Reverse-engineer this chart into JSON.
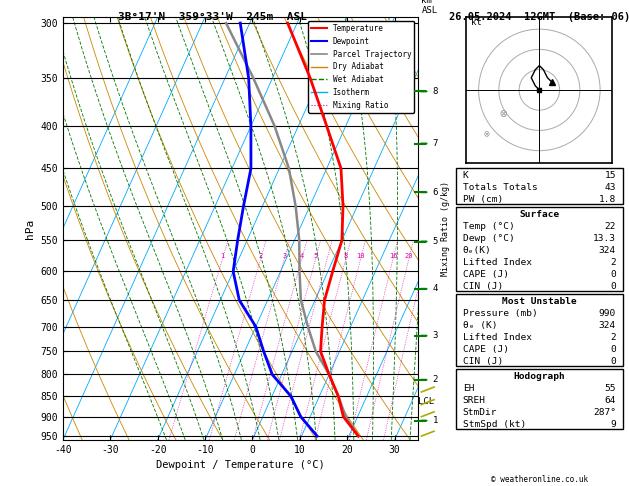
{
  "title_left": "3B°17'N  359°33'W  245m  ASL",
  "title_right": "26.05.2024  12GMT  (Base: 06)",
  "xlabel": "Dewpoint / Temperature (°C)",
  "ylabel_left": "hPa",
  "pressure_levels": [
    300,
    350,
    400,
    450,
    500,
    550,
    600,
    650,
    700,
    750,
    800,
    850,
    900,
    950
  ],
  "pmin": 295,
  "pmax": 960,
  "temp_min": -40,
  "temp_max": 35,
  "temp_profile_pressure": [
    950,
    900,
    850,
    800,
    750,
    700,
    650,
    600,
    550,
    500,
    450,
    400,
    350,
    300
  ],
  "temp_profile_temp": [
    22,
    17,
    14,
    10,
    6,
    4,
    2,
    1,
    0,
    -3,
    -7,
    -14,
    -22,
    -32
  ],
  "temp_color": "#ff0000",
  "temp_lw": 2.0,
  "dewp_profile_pressure": [
    950,
    900,
    850,
    800,
    750,
    700,
    650,
    600,
    550,
    500,
    450,
    400,
    350,
    300
  ],
  "dewp_profile_temp": [
    13.3,
    8,
    4,
    -2,
    -6,
    -10,
    -16,
    -20,
    -22,
    -24,
    -26,
    -30,
    -35,
    -42
  ],
  "dewp_color": "#0000ff",
  "dewp_lw": 2.0,
  "parcel_pressure": [
    950,
    900,
    850,
    800,
    750,
    700,
    650,
    600,
    550,
    500,
    450,
    400,
    350,
    300
  ],
  "parcel_temp": [
    22,
    17.5,
    14,
    10,
    5,
    1,
    -3,
    -6,
    -9,
    -13,
    -18,
    -25,
    -34,
    -45
  ],
  "parcel_color": "#888888",
  "parcel_lw": 1.8,
  "isotherm_color": "#00aaff",
  "isotherm_lw": 0.6,
  "dry_adiabat_color": "#cc8800",
  "dry_adiabat_lw": 0.6,
  "wet_adiabat_color": "#007700",
  "wet_adiabat_lw": 0.6,
  "mixing_ratio_color": "#dd00aa",
  "mixing_ratio_lw": 0.5,
  "mixing_ratio_values": [
    1,
    2,
    3,
    4,
    5,
    6,
    8,
    10,
    16,
    20,
    25
  ],
  "km_ticks": [
    1,
    2,
    3,
    4,
    5,
    6,
    7,
    8
  ],
  "km_pressures": [
    910,
    812,
    718,
    630,
    552,
    481,
    420,
    363
  ],
  "lcl_pressure": 862,
  "K": 15,
  "Totals_Totals": 43,
  "PW_cm": 1.8,
  "Surface_Temp": 22,
  "Surface_Dewp": 13.3,
  "Surface_theta_e": 324,
  "Surface_LI": 2,
  "Surface_CAPE": 0,
  "Surface_CIN": 0,
  "MU_Pressure": 990,
  "MU_theta_e": 324,
  "MU_LI": 2,
  "MU_CAPE": 0,
  "MU_CIN": 0,
  "EH": 55,
  "SREH": 64,
  "StmDir": 287,
  "StmSpd": 9
}
